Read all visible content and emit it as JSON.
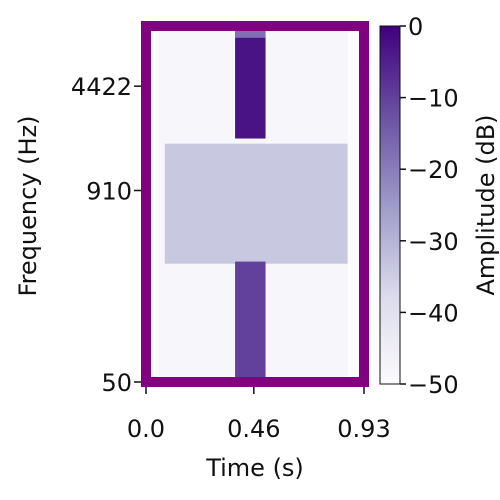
{
  "chart_data": {
    "type": "heatmap",
    "title": "",
    "xlabel": "Time (s)",
    "ylabel": "Frequency (Hz)",
    "colorbar_label": "Amplitude (dB)",
    "xlim": [
      0.0,
      0.93
    ],
    "x_ticks": [
      "0.0",
      "0.46",
      "0.93"
    ],
    "y_scale": "log",
    "ylim_hz": [
      50,
      11000
    ],
    "y_ticks": [
      "50",
      "910",
      "4422"
    ],
    "clim_db": [
      -50,
      0
    ],
    "colorbar_ticks": [
      "0",
      "−10",
      "−20",
      "−30",
      "−40",
      "−50"
    ],
    "colormap": "Purples",
    "frame_color": "#800080",
    "regions": [
      {
        "t": [
          0.05,
          0.86
        ],
        "f_hz": [
          50,
          11000
        ],
        "db": -48
      },
      {
        "t": [
          0.08,
          0.86
        ],
        "f_hz": [
          300,
          1850
        ],
        "db": -34
      },
      {
        "t": [
          0.38,
          0.51
        ],
        "f_hz": [
          2000,
          10500
        ],
        "db": -3
      },
      {
        "t": [
          0.38,
          0.51
        ],
        "f_hz": [
          9200,
          10500
        ],
        "db": -18
      },
      {
        "t": [
          0.38,
          0.51
        ],
        "f_hz": [
          50,
          310
        ],
        "db": -10
      }
    ]
  }
}
